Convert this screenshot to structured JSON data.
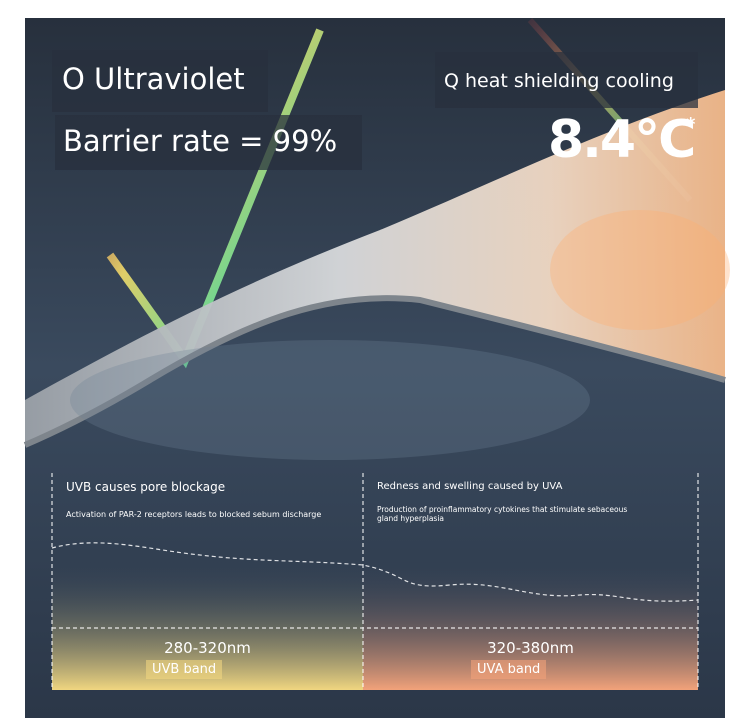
{
  "headline": {
    "left_title": "O Ultraviolet",
    "left_stat": "Barrier rate = 99%",
    "right_title": "Q heat shielding cooling",
    "right_stat": "8.4°C",
    "right_stat_note": "*"
  },
  "panels": [
    {
      "title": "UVB causes pore blockage",
      "description": "Activation of PAR-2 receptors leads to blocked sebum discharge",
      "range": "280-320nm",
      "band": "UVB band"
    },
    {
      "title": "Redness and swelling caused by UVA",
      "description": "Production of proinflammatory cytokines that stimulate sebaceous gland hyperplasia",
      "range": "320-380nm",
      "band": "UVA band"
    }
  ]
}
